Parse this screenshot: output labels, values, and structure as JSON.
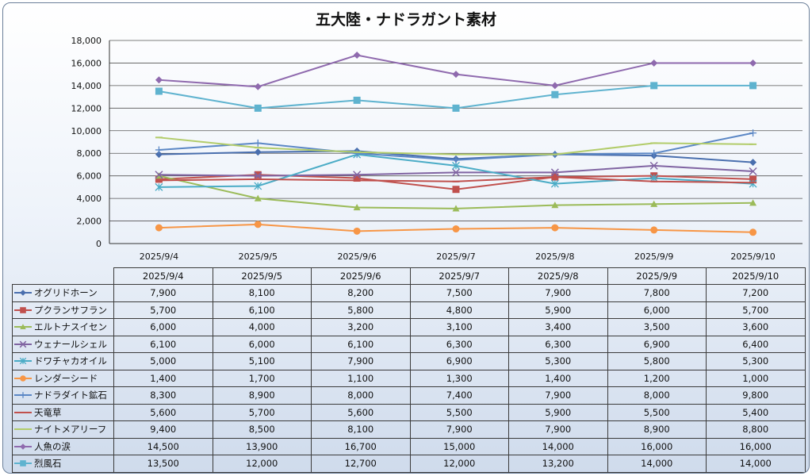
{
  "chart_data": {
    "type": "line",
    "title": "五大陸・ナドラガント素材",
    "categories": [
      "2025/9/4",
      "2025/9/5",
      "2025/9/6",
      "2025/9/7",
      "2025/9/8",
      "2025/9/9",
      "2025/9/10"
    ],
    "ylim": [
      0,
      18000
    ],
    "yticks": [
      "0",
      "2,000",
      "4,000",
      "6,000",
      "8,000",
      "10,000",
      "12,000",
      "14,000",
      "16,000",
      "18,000"
    ],
    "grid": true,
    "legend": "data-table",
    "series": [
      {
        "name": "オグリドホーン",
        "color": "#4a6fae",
        "marker": "diamond",
        "values": [
          7900,
          8100,
          8200,
          7500,
          7900,
          7800,
          7200
        ],
        "labels": [
          "7,900",
          "8,100",
          "8,200",
          "7,500",
          "7,900",
          "7,800",
          "7,200"
        ]
      },
      {
        "name": "プクランサフラン",
        "color": "#c0504d",
        "marker": "square",
        "values": [
          5700,
          6100,
          5800,
          4800,
          5900,
          6000,
          5700
        ],
        "labels": [
          "5,700",
          "6,100",
          "5,800",
          "4,800",
          "5,900",
          "6,000",
          "5,700"
        ]
      },
      {
        "name": "エルトナスイセン",
        "color": "#9bbb59",
        "marker": "triangle",
        "values": [
          6000,
          4000,
          3200,
          3100,
          3400,
          3500,
          3600
        ],
        "labels": [
          "6,000",
          "4,000",
          "3,200",
          "3,100",
          "3,400",
          "3,500",
          "3,600"
        ]
      },
      {
        "name": "ウェナールシェル",
        "color": "#8064a2",
        "marker": "x",
        "values": [
          6100,
          6000,
          6100,
          6300,
          6300,
          6900,
          6400
        ],
        "labels": [
          "6,100",
          "6,000",
          "6,100",
          "6,300",
          "6,300",
          "6,900",
          "6,400"
        ]
      },
      {
        "name": "ドワチャカオイル",
        "color": "#4bacc6",
        "marker": "star",
        "values": [
          5000,
          5100,
          7900,
          6900,
          5300,
          5800,
          5300
        ],
        "labels": [
          "5,000",
          "5,100",
          "7,900",
          "6,900",
          "5,300",
          "5,800",
          "5,300"
        ]
      },
      {
        "name": "レンダーシード",
        "color": "#f79646",
        "marker": "circle",
        "values": [
          1400,
          1700,
          1100,
          1300,
          1400,
          1200,
          1000
        ],
        "labels": [
          "1,400",
          "1,700",
          "1,100",
          "1,300",
          "1,400",
          "1,200",
          "1,000"
        ]
      },
      {
        "name": "ナドラダイト鉱石",
        "color": "#5b87c5",
        "marker": "plus",
        "values": [
          8300,
          8900,
          8000,
          7400,
          7900,
          8000,
          9800
        ],
        "labels": [
          "8,300",
          "8,900",
          "8,000",
          "7,400",
          "7,900",
          "8,000",
          "9,800"
        ]
      },
      {
        "name": "天竜草",
        "color": "#c0504d",
        "marker": "dash",
        "values": [
          5600,
          5700,
          5600,
          5500,
          5900,
          5500,
          5400
        ],
        "labels": [
          "5,600",
          "5,700",
          "5,600",
          "5,500",
          "5,900",
          "5,500",
          "5,400"
        ]
      },
      {
        "name": "ナイトメアリーフ",
        "color": "#b2cc6a",
        "marker": "dash",
        "values": [
          9400,
          8500,
          8100,
          7900,
          7900,
          8900,
          8800
        ],
        "labels": [
          "9,400",
          "8,500",
          "8,100",
          "7,900",
          "7,900",
          "8,900",
          "8,800"
        ]
      },
      {
        "name": "人魚の涙",
        "color": "#8f6aae",
        "marker": "diamond",
        "values": [
          14500,
          13900,
          16700,
          15000,
          14000,
          16000,
          16000
        ],
        "labels": [
          "14,500",
          "13,900",
          "16,700",
          "15,000",
          "14,000",
          "16,000",
          "16,000"
        ]
      },
      {
        "name": "烈風石",
        "color": "#5fb3cf",
        "marker": "square",
        "values": [
          13500,
          12000,
          12700,
          12000,
          13200,
          14000,
          14000
        ],
        "labels": [
          "13,500",
          "12,000",
          "12,700",
          "12,000",
          "13,200",
          "14,000",
          "14,000"
        ]
      }
    ]
  }
}
